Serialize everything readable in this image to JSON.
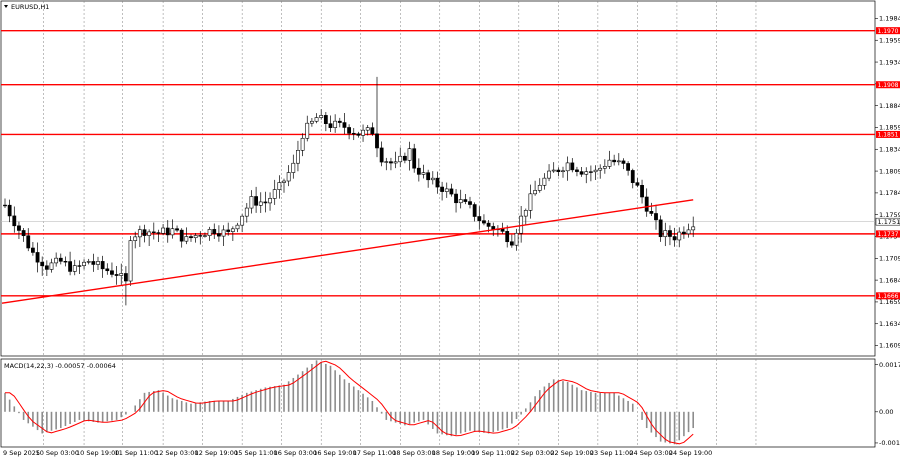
{
  "chart_data": {
    "type": "candlestick",
    "symbol": "EURUSD,H1",
    "price_axis": {
      "ticks": [
        "1.1984",
        "1.1959",
        "1.1934",
        "1.1909",
        "1.1884",
        "1.1859",
        "1.1834",
        "1.1809",
        "1.1784",
        "1.1759",
        "1.1734",
        "1.1709",
        "1.1684",
        "1.1659",
        "1.1634",
        "1.1609"
      ],
      "range": [
        1.1597,
        1.2004
      ]
    },
    "current_price": "1.1751",
    "horizontal_levels": [
      {
        "label": "1.1970",
        "value": 1.197,
        "color": "#ff0000"
      },
      {
        "label": "1.1908",
        "value": 1.1908,
        "color": "#ff0000"
      },
      {
        "label": "1.1851",
        "value": 1.1851,
        "color": "#ff0000"
      },
      {
        "label": "1.1737",
        "value": 1.1737,
        "color": "#ff0000"
      },
      {
        "label": "1.1666",
        "value": 1.1666,
        "color": "#ff0000"
      }
    ],
    "trendline": {
      "from": {
        "bar": 0,
        "price": 1.1658
      },
      "to": {
        "bar": 148,
        "price": 1.1776
      },
      "color": "#ff0000"
    },
    "time_axis": [
      "9 Sep 2025",
      "10 Sep 03:00",
      "10 Sep 19:00",
      "11 Sep 11:00",
      "12 Sep 03:00",
      "12 Sep 19:00",
      "15 Sep 11:00",
      "16 Sep 03:00",
      "16 Sep 19:00",
      "17 Sep 11:00",
      "18 Sep 03:00",
      "18 Sep 19:00",
      "19 Sep 11:00",
      "22 Sep 03:00",
      "22 Sep 19:00",
      "23 Sep 11:00",
      "24 Sep 03:00",
      "24 Sep 19:00"
    ],
    "price_path": [
      [
        0,
        1.177
      ],
      [
        3,
        1.1742
      ],
      [
        6,
        1.1715
      ],
      [
        9,
        1.17
      ],
      [
        12,
        1.1705
      ],
      [
        15,
        1.1696
      ],
      [
        18,
        1.1706
      ],
      [
        21,
        1.1697
      ],
      [
        24,
        1.1692
      ],
      [
        26,
        1.168
      ],
      [
        27,
        1.1735
      ],
      [
        30,
        1.1741
      ],
      [
        33,
        1.1738
      ],
      [
        36,
        1.1741
      ],
      [
        39,
        1.173
      ],
      [
        42,
        1.1738
      ],
      [
        45,
        1.1742
      ],
      [
        48,
        1.1737
      ],
      [
        50,
        1.1752
      ],
      [
        53,
        1.1775
      ],
      [
        56,
        1.1773
      ],
      [
        59,
        1.179
      ],
      [
        62,
        1.1815
      ],
      [
        64,
        1.1852
      ],
      [
        67,
        1.187
      ],
      [
        70,
        1.1862
      ],
      [
        73,
        1.186
      ],
      [
        76,
        1.1852
      ],
      [
        79,
        1.1855
      ],
      [
        81,
        1.1825
      ],
      [
        84,
        1.1815
      ],
      [
        87,
        1.1832
      ],
      [
        88,
        1.1815
      ],
      [
        91,
        1.1798
      ],
      [
        94,
        1.179
      ],
      [
        97,
        1.1777
      ],
      [
        100,
        1.1766
      ],
      [
        103,
        1.1748
      ],
      [
        106,
        1.1742
      ],
      [
        109,
        1.173
      ],
      [
        112,
        1.1768
      ],
      [
        115,
        1.1795
      ],
      [
        118,
        1.1808
      ],
      [
        121,
        1.1818
      ],
      [
        124,
        1.181
      ],
      [
        127,
        1.1808
      ],
      [
        130,
        1.1822
      ],
      [
        133,
        1.1815
      ],
      [
        136,
        1.179
      ],
      [
        139,
        1.1758
      ],
      [
        141,
        1.1737
      ],
      [
        144,
        1.1734
      ],
      [
        146,
        1.1742
      ],
      [
        148,
        1.1751
      ]
    ],
    "spikes": [
      {
        "bar": 80,
        "high": 1.1917,
        "low": 1.1835
      },
      {
        "bar": 26,
        "high": 1.17,
        "low": 1.1655
      }
    ],
    "macd": {
      "label": "MACD(14,22,3) -0.00057 -0.00064",
      "ticks": [
        "0.00174",
        "0.00",
        "-0.00115"
      ],
      "tick_values": [
        0.00174,
        0.0,
        -0.00115
      ],
      "range": [
        -0.0013,
        0.00195
      ],
      "histogram_path": [
        [
          0,
          0.0007
        ],
        [
          4,
          -0.0003
        ],
        [
          8,
          -0.0008
        ],
        [
          12,
          -0.0006
        ],
        [
          16,
          -0.0003
        ],
        [
          20,
          -0.0004
        ],
        [
          24,
          -0.0003
        ],
        [
          27,
          0.0
        ],
        [
          30,
          0.0007
        ],
        [
          33,
          0.0008
        ],
        [
          36,
          0.0005
        ],
        [
          40,
          0.0003
        ],
        [
          44,
          0.0004
        ],
        [
          48,
          0.0004
        ],
        [
          52,
          0.0007
        ],
        [
          56,
          0.0009
        ],
        [
          60,
          0.001
        ],
        [
          64,
          0.0015
        ],
        [
          67,
          0.0019
        ],
        [
          70,
          0.0017
        ],
        [
          73,
          0.0012
        ],
        [
          76,
          0.0008
        ],
        [
          79,
          0.0004
        ],
        [
          82,
          -0.0003
        ],
        [
          86,
          -0.0005
        ],
        [
          90,
          -0.0003
        ],
        [
          93,
          -0.0008
        ],
        [
          96,
          -0.0009
        ],
        [
          100,
          -0.0007
        ],
        [
          104,
          -0.0008
        ],
        [
          108,
          -0.0006
        ],
        [
          111,
          -0.0001
        ],
        [
          115,
          0.0008
        ],
        [
          118,
          0.0012
        ],
        [
          121,
          0.0011
        ],
        [
          124,
          0.0008
        ],
        [
          127,
          0.0007
        ],
        [
          131,
          0.0007
        ],
        [
          135,
          0.0003
        ],
        [
          138,
          -0.0006
        ],
        [
          141,
          -0.0011
        ],
        [
          144,
          -0.0012
        ],
        [
          146,
          -0.0009
        ],
        [
          148,
          -0.0006
        ]
      ],
      "signal_color": "#ff0000"
    }
  }
}
